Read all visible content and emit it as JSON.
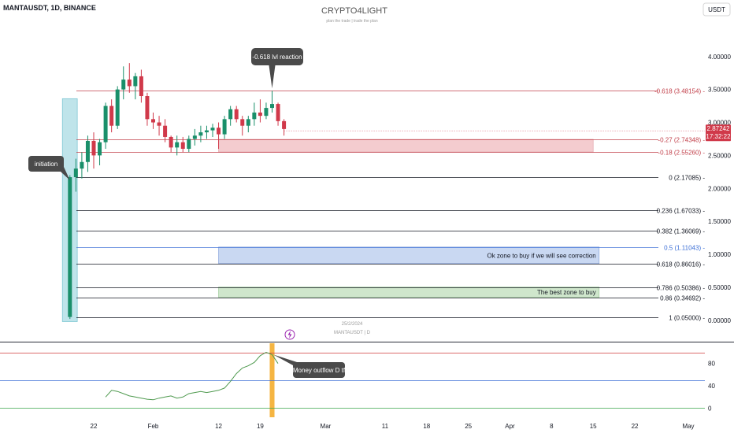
{
  "header": {
    "symbol": "MANTAUSDT, 1D, BINANCE",
    "brand": "CRYPTO4LIGHT",
    "tagline": "plan the trade | trade the plan",
    "currency": "USDT"
  },
  "chart_data": [
    {
      "type": "candlestick",
      "title": "MANTAUSDT, 1D, BINANCE",
      "ylim": [
        -0.05,
        4.2
      ],
      "y_ticks": [
        0,
        0.5,
        1,
        1.5,
        2,
        2.5,
        3,
        3.5,
        4
      ],
      "y_tick_labels": [
        "0.00000",
        "0.50000",
        "1.00000",
        "1.50000",
        "2.00000",
        "2.50000",
        "3.00000",
        "3.50000",
        "4.00000"
      ],
      "x_tick_labels": [
        {
          "label": "22",
          "day": 0
        },
        {
          "label": "Feb",
          "day": 10
        },
        {
          "label": "12",
          "day": 21
        },
        {
          "label": "19",
          "day": 28
        },
        {
          "label": "Mar",
          "day": 39
        },
        {
          "label": "11",
          "day": 49
        },
        {
          "label": "18",
          "day": 56
        },
        {
          "label": "25",
          "day": 63
        },
        {
          "label": "Apr",
          "day": 70
        },
        {
          "label": "8",
          "day": 77
        },
        {
          "label": "15",
          "day": 84
        },
        {
          "label": "22",
          "day": 91
        },
        {
          "label": "May",
          "day": 100
        }
      ],
      "candles": [
        {
          "day": -4,
          "o": 0.05,
          "h": 2.2,
          "l": 0.02,
          "c": 2.17
        },
        {
          "day": -3,
          "o": 2.17,
          "h": 2.45,
          "l": 1.95,
          "c": 2.3
        },
        {
          "day": -2,
          "o": 2.3,
          "h": 2.55,
          "l": 2.15,
          "c": 2.4
        },
        {
          "day": -1,
          "o": 2.4,
          "h": 2.8,
          "l": 2.25,
          "c": 2.72
        },
        {
          "day": 0,
          "o": 2.72,
          "h": 2.85,
          "l": 2.3,
          "c": 2.5
        },
        {
          "day": 1,
          "o": 2.5,
          "h": 2.75,
          "l": 2.35,
          "c": 2.7
        },
        {
          "day": 2,
          "o": 2.7,
          "h": 3.3,
          "l": 2.6,
          "c": 3.25
        },
        {
          "day": 3,
          "o": 3.25,
          "h": 3.35,
          "l": 2.85,
          "c": 2.95
        },
        {
          "day": 4,
          "o": 2.95,
          "h": 3.55,
          "l": 2.9,
          "c": 3.5
        },
        {
          "day": 5,
          "o": 3.5,
          "h": 3.85,
          "l": 3.35,
          "c": 3.65
        },
        {
          "day": 6,
          "o": 3.65,
          "h": 3.9,
          "l": 3.45,
          "c": 3.55
        },
        {
          "day": 7,
          "o": 3.55,
          "h": 3.75,
          "l": 3.35,
          "c": 3.7
        },
        {
          "day": 8,
          "o": 3.7,
          "h": 3.8,
          "l": 3.3,
          "c": 3.4
        },
        {
          "day": 9,
          "o": 3.4,
          "h": 3.45,
          "l": 2.95,
          "c": 3.05
        },
        {
          "day": 10,
          "o": 3.05,
          "h": 3.15,
          "l": 2.9,
          "c": 3.0
        },
        {
          "day": 11,
          "o": 3.0,
          "h": 3.1,
          "l": 2.8,
          "c": 2.95
        },
        {
          "day": 12,
          "o": 2.95,
          "h": 3.05,
          "l": 2.7,
          "c": 2.78
        },
        {
          "day": 13,
          "o": 2.78,
          "h": 2.8,
          "l": 2.55,
          "c": 2.62
        },
        {
          "day": 14,
          "o": 2.62,
          "h": 2.8,
          "l": 2.5,
          "c": 2.7
        },
        {
          "day": 15,
          "o": 2.7,
          "h": 2.78,
          "l": 2.55,
          "c": 2.6
        },
        {
          "day": 16,
          "o": 2.6,
          "h": 2.8,
          "l": 2.55,
          "c": 2.75
        },
        {
          "day": 17,
          "o": 2.75,
          "h": 2.9,
          "l": 2.65,
          "c": 2.8
        },
        {
          "day": 18,
          "o": 2.8,
          "h": 2.95,
          "l": 2.7,
          "c": 2.85
        },
        {
          "day": 19,
          "o": 2.85,
          "h": 2.95,
          "l": 2.75,
          "c": 2.88
        },
        {
          "day": 20,
          "o": 2.88,
          "h": 2.98,
          "l": 2.78,
          "c": 2.92
        },
        {
          "day": 21,
          "o": 2.92,
          "h": 3.0,
          "l": 2.6,
          "c": 2.82
        },
        {
          "day": 22,
          "o": 2.82,
          "h": 3.1,
          "l": 2.75,
          "c": 3.05
        },
        {
          "day": 23,
          "o": 3.05,
          "h": 3.25,
          "l": 2.95,
          "c": 3.2
        },
        {
          "day": 24,
          "o": 3.2,
          "h": 3.25,
          "l": 3.0,
          "c": 3.05
        },
        {
          "day": 25,
          "o": 3.05,
          "h": 3.1,
          "l": 2.8,
          "c": 2.95
        },
        {
          "day": 26,
          "o": 2.95,
          "h": 3.1,
          "l": 2.85,
          "c": 3.05
        },
        {
          "day": 27,
          "o": 3.05,
          "h": 3.3,
          "l": 2.95,
          "c": 3.15
        },
        {
          "day": 28,
          "o": 3.15,
          "h": 3.35,
          "l": 3.0,
          "c": 3.1
        },
        {
          "day": 29,
          "o": 3.1,
          "h": 3.3,
          "l": 3.05,
          "c": 3.22
        },
        {
          "day": 30,
          "o": 3.22,
          "h": 3.48,
          "l": 3.15,
          "c": 3.28
        },
        {
          "day": 31,
          "o": 3.28,
          "h": 3.3,
          "l": 2.95,
          "c": 3.02
        },
        {
          "day": 32,
          "o": 3.02,
          "h": 3.05,
          "l": 2.8,
          "c": 2.9
        }
      ],
      "current_price": "2.87242",
      "countdown": "17:32:22",
      "fib_levels": [
        {
          "ratio": -0.618,
          "price": 3.48154,
          "label": "-0.618 (3.48154)",
          "color": "#c2414b"
        },
        {
          "ratio": -0.27,
          "price": 2.74348,
          "label": "-0.27 (2.74348)",
          "color": "#c2414b"
        },
        {
          "ratio": -0.18,
          "price": 2.5526,
          "label": "-0.18 (2.55260)",
          "color": "#c2414b"
        },
        {
          "ratio": 0,
          "price": 2.17085,
          "label": "0 (2.17085)",
          "color": "#131722"
        },
        {
          "ratio": 0.236,
          "price": 1.67033,
          "label": "0.236 (1.67033)",
          "color": "#131722"
        },
        {
          "ratio": 0.382,
          "price": 1.36069,
          "label": "0.382 (1.36069)",
          "color": "#131722"
        },
        {
          "ratio": 0.5,
          "price": 1.11043,
          "label": "0.5 (1.11043)",
          "color": "#3c6fd6"
        },
        {
          "ratio": 0.618,
          "price": 0.86016,
          "label": "0.618 (0.86016)",
          "color": "#131722"
        },
        {
          "ratio": 0.786,
          "price": 0.50386,
          "label": "0.786 (0.50386)",
          "color": "#131722"
        },
        {
          "ratio": 0.86,
          "price": 0.34692,
          "label": "0.86 (0.34692)",
          "color": "#131722"
        },
        {
          "ratio": 1,
          "price": 0.05,
          "label": "1 (0.05000)",
          "color": "#131722"
        }
      ],
      "zones": [
        {
          "name": "resistance",
          "from_day": 21,
          "to_day": 84,
          "low": 2.5526,
          "high": 2.74348,
          "color": "#f4cccf",
          "label": ""
        },
        {
          "name": "ok-zone",
          "from_day": 21,
          "to_day": 85,
          "low": 0.86016,
          "high": 1.11043,
          "color": "#c9d8f2",
          "label": "Ok zone to buy if we will see correction"
        },
        {
          "name": "best-zone",
          "from_day": 21,
          "to_day": 85,
          "low": 0.34692,
          "high": 0.50386,
          "color": "#cfe6cc",
          "label": "The best zone to buy"
        }
      ],
      "highlight": {
        "from_day": -5,
        "to_day": -2.5,
        "color": "#bfe4ea"
      },
      "annotations": [
        {
          "text": "initiation",
          "day": -4,
          "price": 2.17,
          "side": "left"
        },
        {
          "text": "-0.618 lvl reaction",
          "day": 30,
          "price": 3.48,
          "side": "top"
        }
      ],
      "watermark_date": "25/2/2024",
      "watermark_symbol": "MANTAUSDT | D"
    },
    {
      "type": "line",
      "ylim": [
        -5,
        105
      ],
      "y_ticks": [
        0,
        40,
        80
      ],
      "y_tick_labels": [
        "0",
        "40",
        "80"
      ],
      "reference_lines": [
        {
          "value": 100,
          "color": "#d03b3b"
        },
        {
          "value": 50,
          "color": "#3c6fd6"
        },
        {
          "value": 0,
          "color": "#3aa64b"
        }
      ],
      "series": [
        {
          "color": "#4f9a4f",
          "x": [
            2,
            3,
            4,
            5,
            6,
            7,
            8,
            9,
            10,
            11,
            12,
            13,
            14,
            15,
            16,
            17,
            18,
            19,
            20,
            21,
            22,
            23,
            24,
            25,
            26,
            27,
            28,
            29,
            30,
            31
          ],
          "y": [
            20,
            32,
            30,
            26,
            22,
            20,
            18,
            16,
            15,
            18,
            20,
            22,
            18,
            20,
            26,
            28,
            30,
            28,
            30,
            32,
            36,
            48,
            62,
            72,
            76,
            82,
            94,
            100,
            96,
            80
          ]
        }
      ],
      "highlight": {
        "from_day": 29.6,
        "to_day": 30.4,
        "color": "#f5b542"
      },
      "annotations": [
        {
          "text": "Money outflow D tf",
          "day": 31,
          "value": 78
        }
      ]
    }
  ]
}
